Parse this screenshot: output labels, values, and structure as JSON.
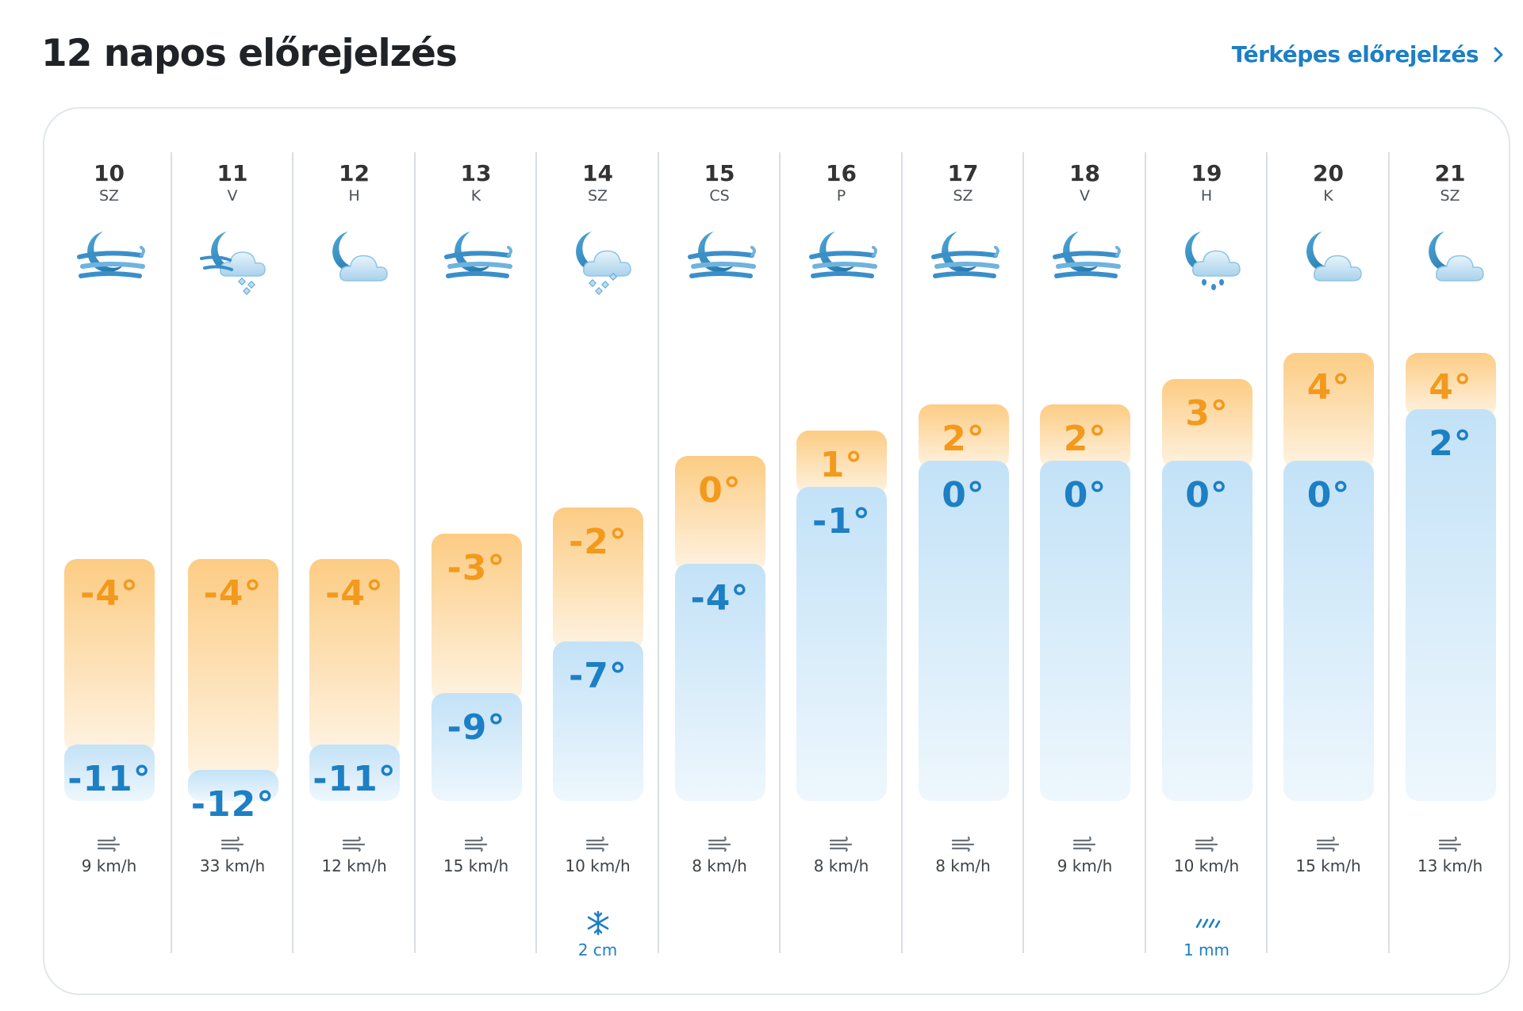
{
  "header": {
    "title": "12 napos előrejelzés",
    "map_link": "Térképes előrejelzés"
  },
  "colors": {
    "max_temp": "#f29a1d",
    "min_temp": "#1d7fc4",
    "link": "#1d7fc4"
  },
  "days": [
    {
      "num": "10",
      "name": "SZ",
      "icon": "windy-night-icon",
      "max": "-4°",
      "min": "-11°",
      "max_value": -4,
      "min_value": -11,
      "wind": "9 km/h",
      "precip": null,
      "precip_icon": null
    },
    {
      "num": "11",
      "name": "V",
      "icon": "night-wind-snow-icon",
      "max": "-4°",
      "min": "-12°",
      "max_value": -4,
      "min_value": -12,
      "wind": "33 km/h",
      "precip": null,
      "precip_icon": null
    },
    {
      "num": "12",
      "name": "H",
      "icon": "night-cloudy-icon",
      "max": "-4°",
      "min": "-11°",
      "max_value": -4,
      "min_value": -11,
      "wind": "12 km/h",
      "precip": null,
      "precip_icon": null
    },
    {
      "num": "13",
      "name": "K",
      "icon": "windy-night-icon",
      "max": "-3°",
      "min": "-9°",
      "max_value": -3,
      "min_value": -9,
      "wind": "15 km/h",
      "precip": null,
      "precip_icon": null
    },
    {
      "num": "14",
      "name": "SZ",
      "icon": "night-snow-icon",
      "max": "-2°",
      "min": "-7°",
      "max_value": -2,
      "min_value": -7,
      "wind": "10 km/h",
      "precip": "2 cm",
      "precip_icon": "snowflake-icon"
    },
    {
      "num": "15",
      "name": "CS",
      "icon": "windy-night-icon",
      "max": "0°",
      "min": "-4°",
      "max_value": 0,
      "min_value": -4,
      "wind": "8 km/h",
      "precip": null,
      "precip_icon": null
    },
    {
      "num": "16",
      "name": "P",
      "icon": "windy-night-icon",
      "max": "1°",
      "min": "-1°",
      "max_value": 1,
      "min_value": -1,
      "wind": "8 km/h",
      "precip": null,
      "precip_icon": null
    },
    {
      "num": "17",
      "name": "SZ",
      "icon": "windy-night-icon",
      "max": "2°",
      "min": "0°",
      "max_value": 2,
      "min_value": 0,
      "wind": "8 km/h",
      "precip": null,
      "precip_icon": null
    },
    {
      "num": "18",
      "name": "V",
      "icon": "windy-night-icon",
      "max": "2°",
      "min": "0°",
      "max_value": 2,
      "min_value": 0,
      "wind": "9 km/h",
      "precip": null,
      "precip_icon": null
    },
    {
      "num": "19",
      "name": "H",
      "icon": "night-rain-icon",
      "max": "3°",
      "min": "0°",
      "max_value": 3,
      "min_value": 0,
      "wind": "10 km/h",
      "precip": "1 mm",
      "precip_icon": "rain-icon"
    },
    {
      "num": "20",
      "name": "K",
      "icon": "night-cloudy-icon",
      "max": "4°",
      "min": "0°",
      "max_value": 4,
      "min_value": 0,
      "wind": "15 km/h",
      "precip": null,
      "precip_icon": null
    },
    {
      "num": "21",
      "name": "SZ",
      "icon": "night-cloudy-icon",
      "max": "4°",
      "min": "2°",
      "max_value": 4,
      "min_value": 2,
      "wind": "13 km/h",
      "precip": null,
      "precip_icon": null
    }
  ]
}
